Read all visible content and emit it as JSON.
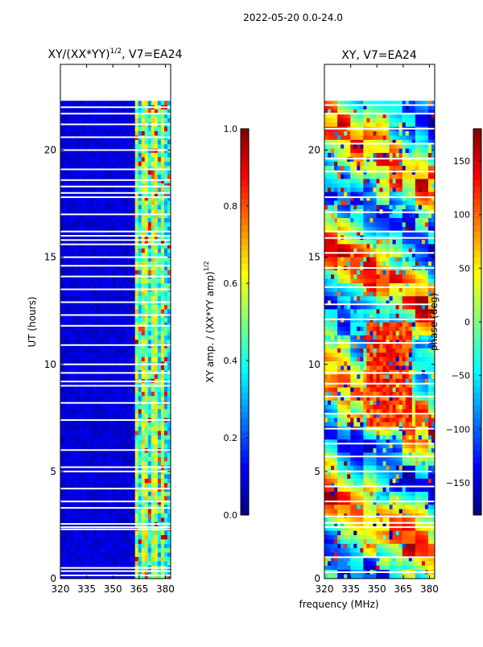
{
  "figure_title": "2022-05-20 0.0-24.0",
  "shared_xlabel": "frequency (MHz)",
  "chart_data": [
    {
      "type": "heatmap",
      "title_main": "XY/(XX*YY)",
      "title_exp": "1/2",
      "title_suffix": ", V7=EA24",
      "xlabel": "",
      "ylabel": "UT (hours)",
      "xlim": [
        320,
        383
      ],
      "ylim": [
        0,
        24
      ],
      "xticks": [
        320,
        335,
        350,
        365,
        380
      ],
      "yticks": [
        0,
        5,
        10,
        15,
        20
      ],
      "colormap": "jet",
      "colorbar": {
        "label_main": "XY amp. / (XX*YY amp)",
        "label_exp": "1/2",
        "range": [
          0.0,
          1.0
        ],
        "ticks": [
          0.0,
          0.2,
          0.4,
          0.6,
          0.8,
          1.0
        ],
        "tick_labels": [
          "0.0",
          "0.2",
          "0.4",
          "0.6",
          "0.8",
          "1.0"
        ]
      },
      "data_extent_hours": [
        0,
        22.3
      ],
      "bright_band_MHz": [
        362,
        383
      ],
      "flag_gaps_hours": [
        0.15,
        0.35,
        0.5,
        2.3,
        2.4,
        2.55,
        3.3,
        3.6,
        4.2,
        5.0,
        5.2,
        6.0,
        7.4,
        8.2,
        9.0,
        9.2,
        9.6,
        10.0,
        10.9,
        11.8,
        12.3,
        12.9,
        13.5,
        14.1,
        14.6,
        15.0,
        15.6,
        15.8,
        16.0,
        16.2,
        17.0,
        17.8,
        18.0,
        18.3,
        18.6,
        19.1,
        20.0,
        20.6,
        21.2,
        21.7,
        22.0
      ]
    },
    {
      "type": "heatmap",
      "title_main": "XY, V7=EA24",
      "xlabel": "",
      "ylabel": "",
      "xlim": [
        320,
        383
      ],
      "ylim": [
        0,
        24
      ],
      "xticks": [
        320,
        335,
        350,
        365,
        380
      ],
      "yticks": [
        0,
        5,
        10,
        15,
        20
      ],
      "colormap": "jet",
      "colorbar": {
        "label_main": "phase (deg)",
        "range": [
          -180,
          180
        ],
        "ticks": [
          -150,
          -100,
          -50,
          0,
          50,
          100,
          150
        ],
        "tick_labels": [
          "−150",
          "−100",
          "−50",
          "0",
          "50",
          "100",
          "150"
        ]
      },
      "data_extent_hours": [
        0,
        22.3
      ],
      "flag_gaps_hours": [
        0.3,
        1.0,
        2.4,
        2.6,
        2.9,
        3.6,
        4.3,
        5.0,
        5.7,
        6.3,
        7.0,
        7.7,
        8.5,
        9.1,
        9.6,
        11.0,
        12.1,
        12.8,
        13.6,
        14.5,
        15.2,
        15.9,
        16.2,
        17.1,
        17.8,
        19.0,
        19.6,
        20.3,
        21.0,
        21.7,
        22.1
      ]
    }
  ]
}
